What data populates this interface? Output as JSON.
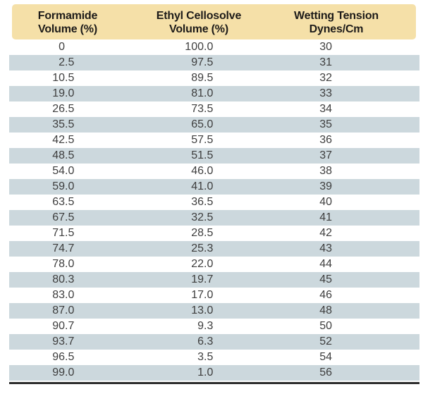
{
  "table": {
    "columns": [
      {
        "line1": "Formamide",
        "line2": "Volume (%)"
      },
      {
        "line1": "Ethyl Cellosolve",
        "line2": "Volume (%)"
      },
      {
        "line1": "Wetting Tension",
        "line2": "Dynes/Cm"
      }
    ],
    "rows": [
      [
        "0",
        "100.0",
        "30"
      ],
      [
        "2.5",
        "97.5",
        "31"
      ],
      [
        "10.5",
        "89.5",
        "32"
      ],
      [
        "19.0",
        "81.0",
        "33"
      ],
      [
        "26.5",
        "73.5",
        "34"
      ],
      [
        "35.5",
        "65.0",
        "35"
      ],
      [
        "42.5",
        "57.5",
        "36"
      ],
      [
        "48.5",
        "51.5",
        "37"
      ],
      [
        "54.0",
        "46.0",
        "38"
      ],
      [
        "59.0",
        "41.0",
        "39"
      ],
      [
        "63.5",
        "36.5",
        "40"
      ],
      [
        "67.5",
        "32.5",
        "41"
      ],
      [
        "71.5",
        "28.5",
        "42"
      ],
      [
        "74.7",
        "25.3",
        "43"
      ],
      [
        "78.0",
        "22.0",
        "44"
      ],
      [
        "80.3",
        "19.7",
        "45"
      ],
      [
        "83.0",
        "17.0",
        "46"
      ],
      [
        "87.0",
        "13.0",
        "48"
      ],
      [
        "90.7",
        "9.3",
        "50"
      ],
      [
        "93.7",
        "6.3",
        "52"
      ],
      [
        "96.5",
        "3.5",
        "54"
      ],
      [
        "99.0",
        "1.0",
        "56"
      ]
    ],
    "colors": {
      "header_bg": "#f5e0a8",
      "stripe_bg": "#ccd8dd",
      "header_text": "#1d1b19",
      "body_text": "#3e3e3e",
      "bottom_rule": "#2d2d2d"
    }
  },
  "chart_data": {
    "type": "table",
    "title": "",
    "columns": [
      "Formamide Volume (%)",
      "Ethyl Cellosolve Volume (%)",
      "Wetting Tension Dynes/Cm"
    ],
    "rows": [
      [
        0,
        100.0,
        30
      ],
      [
        2.5,
        97.5,
        31
      ],
      [
        10.5,
        89.5,
        32
      ],
      [
        19.0,
        81.0,
        33
      ],
      [
        26.5,
        73.5,
        34
      ],
      [
        35.5,
        65.0,
        35
      ],
      [
        42.5,
        57.5,
        36
      ],
      [
        48.5,
        51.5,
        37
      ],
      [
        54.0,
        46.0,
        38
      ],
      [
        59.0,
        41.0,
        39
      ],
      [
        63.5,
        36.5,
        40
      ],
      [
        67.5,
        32.5,
        41
      ],
      [
        71.5,
        28.5,
        42
      ],
      [
        74.7,
        25.3,
        43
      ],
      [
        78.0,
        22.0,
        44
      ],
      [
        80.3,
        19.7,
        45
      ],
      [
        83.0,
        17.0,
        46
      ],
      [
        87.0,
        13.0,
        48
      ],
      [
        90.7,
        9.3,
        50
      ],
      [
        93.7,
        6.3,
        52
      ],
      [
        96.5,
        3.5,
        54
      ],
      [
        99.0,
        1.0,
        56
      ]
    ],
    "layout": {
      "header_rows": 1,
      "striped": true,
      "stripe_start_row": 2
    }
  }
}
